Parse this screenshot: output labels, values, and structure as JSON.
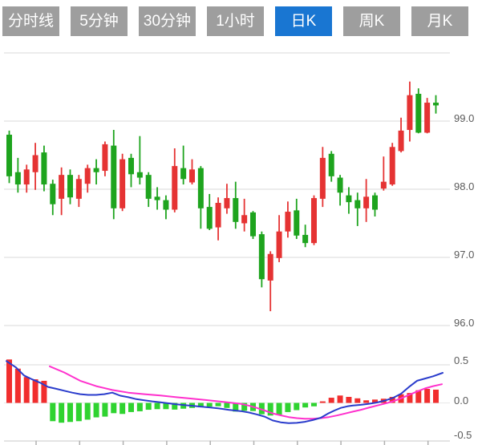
{
  "tabs": [
    {
      "id": "timeline",
      "label": "分时线",
      "selected": false
    },
    {
      "id": "5min",
      "label": "5分钟",
      "selected": false
    },
    {
      "id": "30min",
      "label": "30分钟",
      "selected": false
    },
    {
      "id": "1hour",
      "label": "1小时",
      "selected": false
    },
    {
      "id": "daily-k",
      "label": "日K",
      "selected": true
    },
    {
      "id": "weekly-k",
      "label": "周K",
      "selected": false
    },
    {
      "id": "monthly-k",
      "label": "月K",
      "selected": false
    }
  ],
  "colors": {
    "tab_bg": "#9e9e9e",
    "tab_selected_bg": "#1976d2",
    "tab_text": "#ffffff",
    "candle_up": "#e53333",
    "candle_down": "#1ea41e",
    "hist_up": "#f12e2e",
    "hist_down": "#2fd330",
    "dif_line": "#2a3ccc",
    "dea_line": "#ff31cd",
    "gridline": "#d9d9d9",
    "zero_line": "#e8e8e8",
    "axis_line": "#c9c9c9",
    "tick": "#b0b0b0",
    "label_text": "#595959"
  },
  "chart_data": {
    "type": "candlestick+macd",
    "grid": true,
    "legend": "none",
    "panels": {
      "price": {
        "y_axis": {
          "labels": [
            "99.0",
            "98.0",
            "97.0",
            "96.0"
          ],
          "values": [
            99.0,
            98.0,
            97.0,
            96.0
          ],
          "gridline_values": [
            100.0,
            99.0,
            98.0,
            97.0,
            96.0
          ],
          "range": [
            95.8,
            100.0
          ]
        },
        "candles_ohlc": [
          [
            98.8,
            98.86,
            98.09,
            98.19
          ],
          [
            98.25,
            98.46,
            97.95,
            98.07
          ],
          [
            98.07,
            98.36,
            97.95,
            98.29
          ],
          [
            98.25,
            98.68,
            97.99,
            98.5
          ],
          [
            98.54,
            98.64,
            97.97,
            98.07
          ],
          [
            98.08,
            98.14,
            97.62,
            97.78
          ],
          [
            97.86,
            98.32,
            97.62,
            98.21
          ],
          [
            98.21,
            98.29,
            97.78,
            97.88
          ],
          [
            97.86,
            98.21,
            97.74,
            98.15
          ],
          [
            98.08,
            98.36,
            97.95,
            98.31
          ],
          [
            98.31,
            98.44,
            98.07,
            98.25
          ],
          [
            98.27,
            98.7,
            98.19,
            98.66
          ],
          [
            98.64,
            98.87,
            97.56,
            97.72
          ],
          [
            97.72,
            98.52,
            97.68,
            98.44
          ],
          [
            98.46,
            98.52,
            98.03,
            98.22
          ],
          [
            98.25,
            98.78,
            98.07,
            98.17
          ],
          [
            98.21,
            98.25,
            97.74,
            97.86
          ],
          [
            97.89,
            98.03,
            97.7,
            97.84
          ],
          [
            97.84,
            97.91,
            97.56,
            97.7
          ],
          [
            97.7,
            98.6,
            97.66,
            98.34
          ],
          [
            98.31,
            98.64,
            98.07,
            98.15
          ],
          [
            98.1,
            98.44,
            98.07,
            98.29
          ],
          [
            98.31,
            98.34,
            97.42,
            97.72
          ],
          [
            97.74,
            97.93,
            97.4,
            97.42
          ],
          [
            97.44,
            97.88,
            97.25,
            97.8
          ],
          [
            97.72,
            98.08,
            97.64,
            97.87
          ],
          [
            97.87,
            98.11,
            97.42,
            97.52
          ],
          [
            97.5,
            97.86,
            97.38,
            97.62
          ],
          [
            97.66,
            97.68,
            97.27,
            97.31
          ],
          [
            97.34,
            97.38,
            96.56,
            96.68
          ],
          [
            96.66,
            97.09,
            96.21,
            97.05
          ],
          [
            96.99,
            97.62,
            96.93,
            97.38
          ],
          [
            97.38,
            97.82,
            97.29,
            97.67
          ],
          [
            97.69,
            97.86,
            97.27,
            97.32
          ],
          [
            97.33,
            97.48,
            97.15,
            97.21
          ],
          [
            97.21,
            97.91,
            97.18,
            97.87
          ],
          [
            97.86,
            98.62,
            97.74,
            98.46
          ],
          [
            98.52,
            98.56,
            98.11,
            98.19
          ],
          [
            98.17,
            98.21,
            97.76,
            97.95
          ],
          [
            97.91,
            98.03,
            97.64,
            97.81
          ],
          [
            97.84,
            97.95,
            97.46,
            97.72
          ],
          [
            97.72,
            98.15,
            97.52,
            97.89
          ],
          [
            97.91,
            97.95,
            97.6,
            97.7
          ],
          [
            98.01,
            98.48,
            97.98,
            98.11
          ],
          [
            98.07,
            98.68,
            98.05,
            98.62
          ],
          [
            98.56,
            99.05,
            98.54,
            98.86
          ],
          [
            98.87,
            99.58,
            98.7,
            99.38
          ],
          [
            99.4,
            99.48,
            98.82,
            98.83
          ],
          [
            98.83,
            99.34,
            98.82,
            99.27
          ],
          [
            99.27,
            99.38,
            99.11,
            99.23
          ]
        ]
      },
      "macd": {
        "y_axis": {
          "labels": [
            "0.5",
            "0.0",
            "-0.5"
          ],
          "values": [
            0.5,
            0.0,
            -0.5
          ],
          "range": [
            -0.55,
            0.62
          ]
        },
        "histogram": [
          0.57,
          0.45,
          0.34,
          0.31,
          0.29,
          -0.24,
          -0.26,
          -0.25,
          -0.24,
          -0.22,
          -0.19,
          -0.18,
          -0.135,
          -0.145,
          -0.12,
          -0.11,
          -0.09,
          -0.082,
          -0.082,
          -0.088,
          -0.076,
          -0.066,
          -0.058,
          -0.05,
          -0.044,
          -0.066,
          -0.114,
          -0.103,
          -0.107,
          -0.149,
          -0.166,
          -0.155,
          -0.12,
          -0.095,
          -0.06,
          -0.045,
          0.02,
          0.068,
          0.097,
          0.079,
          0.06,
          0.034,
          0.044,
          0.055,
          0.079,
          0.114,
          0.13,
          0.166,
          0.184,
          0.174
        ],
        "dif_line": {
          "name": "DIF",
          "points": [
            [
              8,
              0.55
            ],
            [
              20,
              0.465
            ],
            [
              30,
              0.36
            ],
            [
              40,
              0.31
            ],
            [
              50,
              0.265
            ],
            [
              60,
              0.21
            ],
            [
              70,
              0.185
            ],
            [
              80,
              0.16
            ],
            [
              90,
              0.135
            ],
            [
              100,
              0.115
            ],
            [
              110,
              0.105
            ],
            [
              120,
              0.105
            ],
            [
              130,
              0.115
            ],
            [
              140,
              0.135
            ],
            [
              150,
              0.095
            ],
            [
              160,
              0.075
            ],
            [
              170,
              0.05
            ],
            [
              180,
              0.035
            ],
            [
              190,
              0.02
            ],
            [
              200,
              0.008
            ],
            [
              210,
              -0.005
            ],
            [
              220,
              -0.018
            ],
            [
              230,
              -0.028
            ],
            [
              240,
              -0.038
            ],
            [
              250,
              -0.048
            ],
            [
              260,
              -0.058
            ],
            [
              273,
              -0.073
            ],
            [
              285,
              -0.09
            ],
            [
              300,
              -0.107
            ],
            [
              310,
              -0.125
            ],
            [
              320,
              -0.15
            ],
            [
              330,
              -0.18
            ],
            [
              340,
              -0.23
            ],
            [
              350,
              -0.255
            ],
            [
              360,
              -0.265
            ],
            [
              370,
              -0.262
            ],
            [
              380,
              -0.248
            ],
            [
              390,
              -0.225
            ],
            [
              400,
              -0.195
            ],
            [
              410,
              -0.135
            ],
            [
              417,
              -0.1
            ],
            [
              425,
              -0.065
            ],
            [
              433,
              -0.045
            ],
            [
              440,
              -0.035
            ],
            [
              450,
              -0.025
            ],
            [
              460,
              -0.012
            ],
            [
              470,
              0.005
            ],
            [
              480,
              0.03
            ],
            [
              490,
              0.065
            ],
            [
              500,
              0.12
            ],
            [
              510,
              0.21
            ],
            [
              520,
              0.29
            ],
            [
              530,
              0.32
            ],
            [
              540,
              0.35
            ],
            [
              552,
              0.395
            ]
          ]
        },
        "dea_line": {
          "name": "DEA",
          "points": [
            [
              62,
              0.48
            ],
            [
              80,
              0.4
            ],
            [
              100,
              0.29
            ],
            [
              120,
              0.22
            ],
            [
              140,
              0.17
            ],
            [
              160,
              0.135
            ],
            [
              180,
              0.115
            ],
            [
              200,
              0.098
            ],
            [
              220,
              0.075
            ],
            [
              240,
              0.055
            ],
            [
              260,
              0.035
            ],
            [
              280,
              0.012
            ],
            [
              300,
              -0.012
            ],
            [
              310,
              -0.035
            ],
            [
              320,
              -0.065
            ],
            [
              330,
              -0.1
            ],
            [
              340,
              -0.138
            ],
            [
              350,
              -0.163
            ],
            [
              360,
              -0.186
            ],
            [
              370,
              -0.2
            ],
            [
              380,
              -0.207
            ],
            [
              390,
              -0.207
            ],
            [
              400,
              -0.2
            ],
            [
              410,
              -0.186
            ],
            [
              420,
              -0.165
            ],
            [
              430,
              -0.14
            ],
            [
              440,
              -0.115
            ],
            [
              450,
              -0.09
            ],
            [
              460,
              -0.062
            ],
            [
              470,
              -0.035
            ],
            [
              480,
              -0.008
            ],
            [
              490,
              0.02
            ],
            [
              500,
              0.06
            ],
            [
              510,
              0.105
            ],
            [
              520,
              0.15
            ],
            [
              530,
              0.19
            ],
            [
              540,
              0.22
            ],
            [
              551,
              0.245
            ]
          ]
        }
      }
    },
    "x_axis": {
      "tick_count": 10,
      "labels": []
    }
  }
}
